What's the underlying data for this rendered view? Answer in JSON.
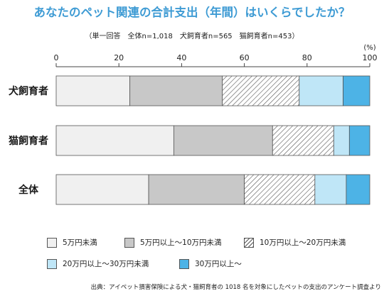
{
  "title": "あなたのペット関連の合計支出（年間）はいくらでしたか？",
  "subtitle": "（単一回答　全体n=1,018　犬飼育者n=565　猫飼育者n=453）",
  "source": "出典：アイペット損害保険による犬・猫飼育者の 1018 名を対象にしたペットの支出のアンケート調査より",
  "colors": {
    "cat1": "#f0f0f0",
    "cat2": "#c8c8c8",
    "cat3_hatch": "#ffffff",
    "cat4": "#bfe6f7",
    "cat5": "#4db3e6",
    "title": "#3e9bd4"
  },
  "chart_data": {
    "type": "bar",
    "orientation": "horizontal",
    "stacked": true,
    "unit": "(%)",
    "xlim": [
      0,
      100
    ],
    "ticks": [
      0,
      20,
      40,
      60,
      80,
      100
    ],
    "grid": false,
    "legend_position": "bottom",
    "categories": [
      "犬飼育者",
      "猫飼育者",
      "全体"
    ],
    "series": [
      {
        "name": "5万円未満",
        "values": [
          23.5,
          37.5,
          29.5
        ],
        "fill": "#f0f0f0",
        "pattern": "none"
      },
      {
        "name": "5万円以上～10万円未満",
        "values": [
          29.5,
          31.5,
          30.5
        ],
        "fill": "#c8c8c8",
        "pattern": "none"
      },
      {
        "name": "10万円以上～20万円未満",
        "values": [
          24.5,
          19.5,
          22.5
        ],
        "fill": "#ffffff",
        "pattern": "hatch"
      },
      {
        "name": "20万円以上～30万円未満",
        "values": [
          14.0,
          5.0,
          10.0
        ],
        "fill": "#bfe6f7",
        "pattern": "none"
      },
      {
        "name": "30万円以上～",
        "values": [
          8.5,
          6.5,
          7.5
        ],
        "fill": "#4db3e6",
        "pattern": "none"
      }
    ]
  }
}
